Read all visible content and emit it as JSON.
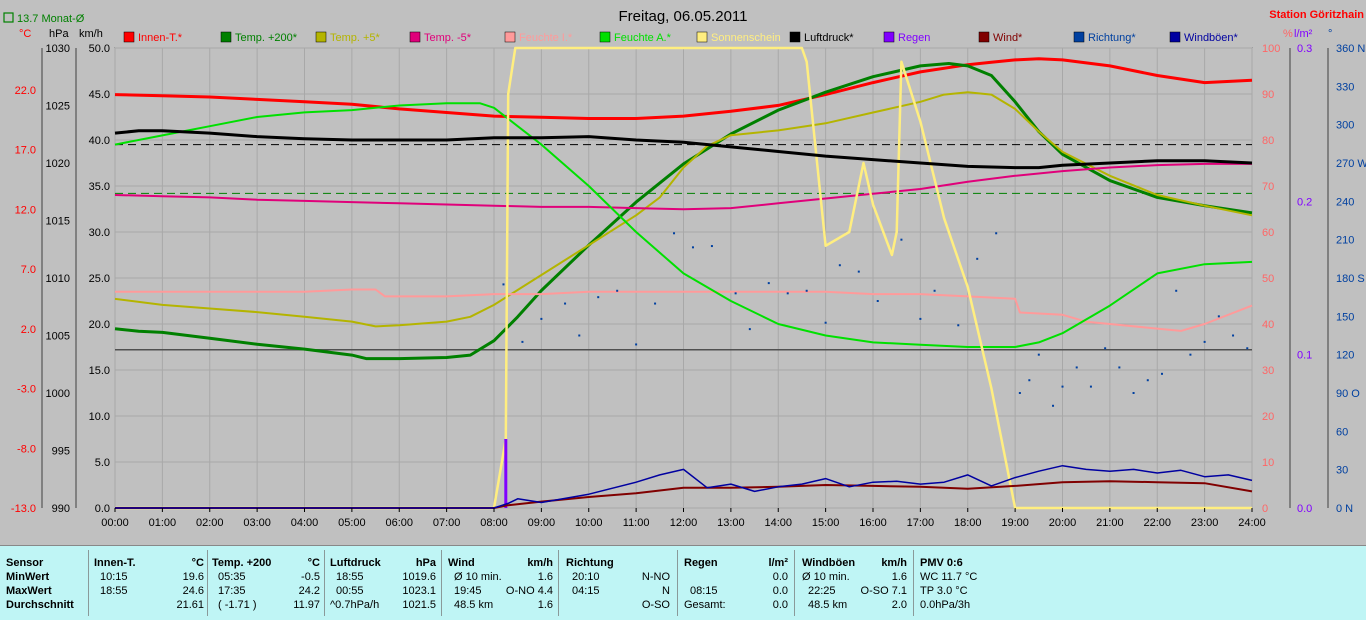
{
  "title": "Freitag, 06.05.2011",
  "station": "Station Göritzhain",
  "monthly_note": "13.7 Monat-Ø",
  "units": {
    "temp": "°C",
    "pressure": "hPa",
    "speed": "km/h",
    "humidity": "%",
    "radiation": "l/m²",
    "direction": "°"
  },
  "legend": [
    {
      "label": "Innen-T.*",
      "color": "#ff0000"
    },
    {
      "label": "Temp. +200*",
      "color": "#008000"
    },
    {
      "label": "Temp. +5*",
      "color": "#b4b400"
    },
    {
      "label": "Temp. -5*",
      "color": "#e0007a"
    },
    {
      "label": "Feuchte I.*",
      "color": "#ff9a9a"
    },
    {
      "label": "Feuchte A.*",
      "color": "#00e000"
    },
    {
      "label": "Sonnenschein",
      "color": "#ffee80"
    },
    {
      "label": "Luftdruck*",
      "color": "#000000"
    },
    {
      "label": "Regen",
      "color": "#8000ff"
    },
    {
      "label": "Wind*",
      "color": "#800000"
    },
    {
      "label": "Richtung*",
      "color": "#0040a0"
    },
    {
      "label": "Windböen*",
      "color": "#0000a0"
    }
  ],
  "chart_data": {
    "type": "line",
    "title": "Freitag, 06.05.2011",
    "x_ticks": [
      "00:00",
      "01:00",
      "02:00",
      "03:00",
      "04:00",
      "05:00",
      "06:00",
      "07:00",
      "08:00",
      "09:00",
      "10:00",
      "11:00",
      "12:00",
      "13:00",
      "14:00",
      "15:00",
      "16:00",
      "17:00",
      "18:00",
      "19:00",
      "20:00",
      "21:00",
      "22:00",
      "23:00",
      "24:00"
    ],
    "axes": {
      "temp_c": {
        "ticks": [
          "22.0",
          "17.0",
          "12.0",
          "7.0",
          "2.0",
          "-3.0",
          "-8.0",
          "-13.0"
        ],
        "range": [
          -13,
          25.5
        ]
      },
      "pressure_hpa": {
        "ticks": [
          "1030",
          "1025",
          "1020",
          "1015",
          "1010",
          "1005",
          "1000",
          "995",
          "990"
        ],
        "range": [
          990,
          1030
        ]
      },
      "speed_kmh": {
        "ticks": [
          "50.0",
          "45.0",
          "40.0",
          "35.0",
          "30.0",
          "25.0",
          "20.0",
          "15.0",
          "10.0",
          "5.0",
          "0.0"
        ],
        "range": [
          0,
          50
        ]
      },
      "humidity_pct": {
        "ticks": [
          "100",
          "90",
          "80",
          "70",
          "60",
          "50",
          "40",
          "30",
          "20",
          "10",
          "0"
        ],
        "range": [
          0,
          100
        ]
      },
      "radiation": {
        "ticks": [
          "0.3",
          "0.2",
          "0.1",
          "0.0"
        ],
        "range": [
          0,
          0.3
        ]
      },
      "direction_deg": {
        "ticks": [
          "360 N",
          "330",
          "300",
          "270 W",
          "240",
          "210",
          "180 S",
          "150",
          "120",
          "90 O",
          "60",
          "30",
          "0 N"
        ],
        "range": [
          0,
          360
        ]
      }
    },
    "series": [
      {
        "name": "Innen-T.*",
        "axis": "temp_c",
        "color": "#ff0000",
        "x": [
          0,
          1,
          2,
          3,
          4,
          5,
          6,
          7,
          8,
          9,
          10,
          11,
          12,
          13,
          14,
          15,
          16,
          17,
          18,
          18.5,
          19,
          19.5,
          20,
          21,
          22,
          23,
          24
        ],
        "y": [
          21.6,
          21.5,
          21.4,
          21.2,
          21.0,
          20.8,
          20.4,
          20.1,
          19.8,
          19.7,
          19.6,
          19.6,
          19.8,
          20.2,
          20.7,
          21.6,
          22.6,
          23.5,
          24.1,
          24.3,
          24.5,
          24.6,
          24.5,
          24.0,
          23.2,
          22.6,
          22.8
        ]
      },
      {
        "name": "Temp. +200*",
        "axis": "temp_c",
        "color": "#008000",
        "x": [
          0,
          0.5,
          1,
          2,
          3,
          4,
          5,
          5.3,
          6,
          7,
          7.5,
          8,
          8.5,
          9,
          10,
          11,
          12,
          13,
          14,
          15,
          16,
          17,
          17.6,
          18,
          18.5,
          19,
          19.5,
          20,
          21,
          22,
          23,
          24
        ],
        "y": [
          2.0,
          1.8,
          1.7,
          1.2,
          0.7,
          0.3,
          -0.2,
          -0.5,
          -0.5,
          -0.4,
          -0.2,
          1.0,
          3.0,
          5.2,
          9.0,
          12.6,
          15.8,
          18.3,
          20.3,
          21.8,
          23.1,
          24.0,
          24.2,
          24.0,
          23.2,
          21.0,
          18.5,
          16.6,
          14.4,
          13.0,
          12.3,
          11.7
        ]
      },
      {
        "name": "Temp. +5*",
        "axis": "temp_c",
        "color": "#b4b400",
        "x": [
          0,
          1,
          2,
          3,
          4,
          5,
          5.5,
          6,
          7,
          7.5,
          8,
          9,
          10,
          11,
          11.5,
          12,
          12.5,
          13,
          14,
          15,
          16,
          17,
          17.5,
          18,
          18.5,
          19,
          19.5,
          20,
          21,
          22,
          23,
          24
        ],
        "y": [
          4.5,
          4.0,
          3.7,
          3.4,
          3.0,
          2.6,
          2.2,
          2.3,
          2.6,
          3.0,
          4.0,
          6.5,
          9.0,
          11.5,
          13.0,
          15.5,
          17.3,
          18.2,
          18.6,
          19.2,
          20.1,
          21.0,
          21.6,
          21.8,
          21.6,
          20.4,
          18.5,
          16.8,
          14.8,
          13.2,
          12.3,
          11.5
        ]
      },
      {
        "name": "Temp. -5*",
        "axis": "temp_c",
        "color": "#e0007a",
        "x": [
          0,
          1,
          2,
          3,
          4,
          5,
          6,
          7,
          8,
          9,
          10,
          11,
          12,
          13,
          14,
          15,
          16,
          17,
          18,
          19,
          20,
          21,
          22,
          23,
          24
        ],
        "y": [
          13.2,
          13.1,
          13.0,
          12.8,
          12.7,
          12.6,
          12.5,
          12.4,
          12.3,
          12.2,
          12.2,
          12.1,
          12.0,
          12.1,
          12.5,
          12.9,
          13.3,
          13.7,
          14.3,
          14.8,
          15.2,
          15.5,
          15.7,
          15.8,
          15.8
        ]
      },
      {
        "name": "Feuchte I.*",
        "axis": "humidity_pct",
        "color": "#ff9a9a",
        "x": [
          0,
          1,
          2,
          3,
          4,
          5,
          5.5,
          5.7,
          6,
          7,
          8,
          9,
          10,
          11,
          12,
          13,
          14,
          15,
          16,
          17,
          18,
          19,
          19.1,
          20,
          20.5,
          21,
          22,
          22.5,
          23,
          24
        ],
        "y": [
          47,
          47,
          47,
          47,
          47,
          47.5,
          47.5,
          46,
          46,
          46,
          46.5,
          46.5,
          47,
          47,
          47,
          47,
          47,
          47,
          46.5,
          46.5,
          46,
          45.5,
          42.5,
          42,
          40.5,
          40,
          39,
          38.5,
          40,
          44
        ]
      },
      {
        "name": "Feuchte A.*",
        "axis": "humidity_pct",
        "color": "#00e000",
        "x": [
          0,
          1,
          2,
          3,
          4,
          5,
          6,
          7,
          7.7,
          8,
          9,
          10,
          11,
          12,
          13,
          14,
          15,
          16,
          17,
          18,
          19,
          19.5,
          20,
          21,
          22,
          23,
          24
        ],
        "y": [
          79,
          81,
          83,
          85,
          86,
          86.5,
          87.5,
          88,
          88,
          87,
          79,
          70,
          60,
          51,
          45,
          40,
          37.5,
          36,
          35.5,
          35,
          35,
          36,
          38,
          44,
          51,
          53,
          53.5
        ]
      },
      {
        "name": "Sonnenschein",
        "axis": "humidity_pct",
        "color": "#ffee80",
        "x": [
          0,
          8,
          8.25,
          8.3,
          8.45,
          14.5,
          14.6,
          15.0,
          15.5,
          15.8,
          16.0,
          16.4,
          16.5,
          16.6,
          17.0,
          17.5,
          18.0,
          18.5,
          19.0,
          24
        ],
        "y": [
          0,
          0,
          15,
          90,
          100,
          100,
          97,
          57,
          60,
          75,
          66,
          55,
          60,
          97,
          84,
          63,
          48,
          26,
          0,
          0
        ]
      },
      {
        "name": "Luftdruck*",
        "axis": "pressure_hpa",
        "color": "#000000",
        "x": [
          0,
          0.5,
          1,
          2,
          3,
          4,
          5,
          6,
          7,
          8,
          9,
          10,
          11,
          12,
          13,
          14,
          15,
          16,
          17,
          18,
          19,
          19.5,
          20,
          21,
          22,
          23,
          24
        ],
        "y": [
          1022.6,
          1022.8,
          1022.8,
          1022.6,
          1022.3,
          1022.1,
          1022.0,
          1022.0,
          1022.0,
          1022.2,
          1022.2,
          1022.3,
          1022.0,
          1021.8,
          1021.4,
          1021.0,
          1020.6,
          1020.3,
          1020.0,
          1019.7,
          1019.6,
          1019.6,
          1019.8,
          1020.0,
          1020.2,
          1020.2,
          1020.0
        ]
      },
      {
        "name": "Regen",
        "axis": "radiation",
        "color": "#8000ff",
        "x": [
          8.25,
          8.25
        ],
        "y": [
          0,
          0.045
        ]
      },
      {
        "name": "Wind*",
        "axis": "speed_kmh",
        "color": "#800000",
        "x": [
          0,
          8,
          8.3,
          9,
          10,
          11,
          12,
          13,
          14,
          15,
          16,
          17,
          18,
          19,
          20,
          21,
          22,
          23,
          24
        ],
        "y": [
          0,
          0,
          0.3,
          0.7,
          1.2,
          1.6,
          2.2,
          2.2,
          2.3,
          2.5,
          2.4,
          2.3,
          2.1,
          2.4,
          2.8,
          2.9,
          2.8,
          2.7,
          1.8
        ]
      },
      {
        "name": "Windböen*",
        "axis": "speed_kmh",
        "color": "#0000a0",
        "x": [
          0,
          8,
          8.3,
          8.5,
          9,
          10,
          11,
          11.5,
          12,
          12.5,
          13,
          13.5,
          14,
          14.5,
          15,
          15.5,
          16,
          16.5,
          17,
          17.5,
          18,
          18.5,
          19,
          19.5,
          20,
          20.5,
          21,
          21.5,
          22,
          22.5,
          23,
          23.5,
          24
        ],
        "y": [
          0,
          0,
          0.5,
          1.0,
          0.6,
          1.5,
          2.8,
          3.6,
          4.2,
          2.2,
          2.6,
          1.8,
          2.3,
          2.6,
          3.2,
          2.3,
          2.8,
          2.9,
          2.6,
          2.8,
          3.6,
          2.4,
          3.3,
          4.0,
          4.6,
          4.2,
          4.0,
          4.2,
          3.8,
          4.1,
          3.4,
          3.6,
          3.0
        ]
      },
      {
        "name": "Richtung*",
        "axis": "direction_deg",
        "color": "#0040a0",
        "type": "scatter",
        "x": [
          8.2,
          8.6,
          9.0,
          9.5,
          9.8,
          10.2,
          10.6,
          11.0,
          11.4,
          11.8,
          12.2,
          12.6,
          13.1,
          13.4,
          13.8,
          14.2,
          14.6,
          15.0,
          15.3,
          15.7,
          16.1,
          16.6,
          17.0,
          17.3,
          17.8,
          18.2,
          18.6,
          19.1,
          19.3,
          19.5,
          19.8,
          20.0,
          20.3,
          20.6,
          20.9,
          21.2,
          21.5,
          21.8,
          22.1,
          22.4,
          22.7,
          23.0,
          23.3,
          23.6,
          23.9
        ],
        "y": [
          175,
          130,
          148,
          160,
          135,
          165,
          170,
          128,
          160,
          215,
          204,
          205,
          168,
          140,
          176,
          168,
          170,
          145,
          190,
          185,
          162,
          210,
          148,
          170,
          143,
          195,
          215,
          90,
          100,
          120,
          80,
          95,
          110,
          95,
          125,
          110,
          90,
          100,
          105,
          170,
          120,
          130,
          150,
          135,
          125
        ]
      }
    ]
  },
  "panel": {
    "sensor": {
      "title": "Sensor",
      "rows": [
        "MinWert",
        "MaxWert",
        "Durchschnitt"
      ]
    },
    "innen": {
      "title": "Innen-T.",
      "unit": "°C",
      "rows": [
        [
          "10:15",
          "19.6"
        ],
        [
          "18:55",
          "24.6"
        ],
        [
          "",
          "21.61"
        ]
      ]
    },
    "temp200": {
      "title": "Temp. +200",
      "unit": "°C",
      "rows": [
        [
          "05:35",
          "-0.5"
        ],
        [
          "17:35",
          "24.2"
        ],
        [
          "( -1.71 )",
          "11.97"
        ]
      ]
    },
    "druck": {
      "title": "Luftdruck",
      "unit": "hPa",
      "rows": [
        [
          "18:55",
          "1019.6"
        ],
        [
          "00:55",
          "1023.1"
        ],
        [
          "^0.7hPa/h",
          "1021.5"
        ]
      ]
    },
    "wind": {
      "title": "Wind",
      "unit": "km/h",
      "rows": [
        [
          "Ø 10 min.",
          "1.6"
        ],
        [
          "19:45",
          "O-NO 4.4"
        ],
        [
          "48.5 km",
          "1.6"
        ]
      ]
    },
    "richtung": {
      "title": "Richtung",
      "unit": "",
      "rows": [
        [
          "20:10",
          "N-NO"
        ],
        [
          "04:15",
          "N"
        ],
        [
          "",
          "O-SO"
        ]
      ]
    },
    "regen": {
      "title": "Regen",
      "unit": "l/m²",
      "rows": [
        [
          "",
          "0.0"
        ],
        [
          "08:15",
          "0.0"
        ],
        [
          "Gesamt:",
          "0.0"
        ]
      ]
    },
    "boeen": {
      "title": "Windböen",
      "unit": "km/h",
      "rows": [
        [
          "Ø 10 min.",
          "1.6"
        ],
        [
          "22:25",
          "O-SO 7.1"
        ],
        [
          "48.5 km",
          "2.0"
        ]
      ]
    },
    "pmv": {
      "title": "PMV 0:6",
      "rows": [
        "WC 11.7 °C",
        "TP 3.0 °C",
        "0.0hPa/3h"
      ]
    }
  }
}
